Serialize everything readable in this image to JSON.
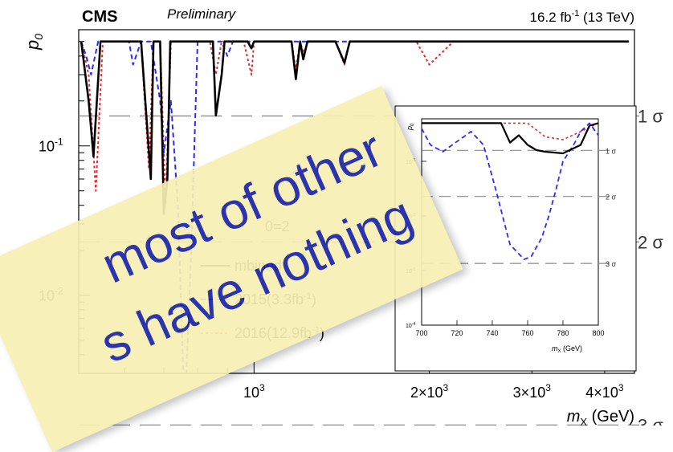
{
  "chart_data": {
    "type": "line",
    "experiment": "CMS",
    "status": "Preliminary",
    "lumi_label_main": "16.2 fb",
    "lumi_sup": "-1",
    "lumi_label_energy": "(13 TeV)",
    "ylabel": "p",
    "ylabel_sub": "0",
    "xlabel": "m",
    "xlabel_sub": "X",
    "xlabel_unit": "(GeV)",
    "x_log": true,
    "y_log": true,
    "xlim": [
      500,
      4500
    ],
    "ylim": [
      0.003,
      0.6
    ],
    "x_ticks": [
      {
        "value": 1000,
        "base": "10",
        "exp": "3"
      },
      {
        "value": 2000,
        "base": "2×10",
        "exp": "3"
      },
      {
        "value": 3000,
        "base": "3×10",
        "exp": "3"
      },
      {
        "value": 4000,
        "base": "4×10",
        "exp": "3"
      }
    ],
    "y_ticks": [
      {
        "value": 0.1,
        "base": "10",
        "exp": "-1"
      },
      {
        "value": 0.01,
        "base": "10",
        "exp": "-2"
      }
    ],
    "sigma_lines": [
      {
        "value": 0.1587,
        "label": "1 σ"
      },
      {
        "value": 0.02275,
        "label": "2 σ"
      },
      {
        "value": 0.00135,
        "label": "3 σ"
      }
    ],
    "legend": {
      "header_partial": "0=2",
      "entries": [
        {
          "name": "mbined",
          "color": "#000000",
          "dash": "solid"
        },
        {
          "name": "2015(3.3fb",
          "sup": "-1",
          "tail": ")",
          "color": "#2b2bff",
          "dash": "6,4"
        },
        {
          "name": "2016(12.9fb",
          "sup": "-1",
          "tail": ")",
          "color": "#e8262a",
          "dash": "3,3"
        }
      ]
    },
    "series": [
      {
        "name": "Combined",
        "color": "#000000",
        "width": 2.6,
        "dash": "none",
        "x": [
          505,
          520,
          530,
          545,
          560,
          575,
          600,
          610,
          640,
          665,
          672,
          690,
          700,
          710,
          718,
          740,
          760,
          780,
          800,
          850,
          860,
          880,
          890,
          910,
          925,
          940,
          975,
          990,
          1000,
          1010,
          1030,
          1100,
          1160,
          1180,
          1200,
          1215,
          1235,
          1250,
          1300,
          1380,
          1430,
          1460,
          1480,
          1500,
          1520,
          1560,
          1600,
          1700,
          1900,
          2200,
          2500,
          3000,
          3500,
          4000,
          4400
        ],
        "y": [
          0.5,
          0.2,
          0.085,
          0.5,
          0.5,
          0.5,
          0.5,
          0.5,
          0.5,
          0.06,
          0.5,
          0.5,
          0.035,
          0.06,
          0.5,
          0.5,
          0.5,
          0.5,
          0.5,
          0.5,
          0.16,
          0.3,
          0.5,
          0.5,
          0.5,
          0.5,
          0.5,
          0.45,
          0.5,
          0.5,
          0.5,
          0.5,
          0.5,
          0.28,
          0.5,
          0.38,
          0.5,
          0.5,
          0.5,
          0.5,
          0.36,
          0.5,
          0.5,
          0.5,
          0.5,
          0.5,
          0.5,
          0.5,
          0.5,
          0.5,
          0.5,
          0.5,
          0.5,
          0.5,
          0.5
        ]
      },
      {
        "name": "2015(3.3fb-1)",
        "color": "#2b2bff",
        "width": 2,
        "dash": "6,4",
        "x": [
          505,
          515,
          525,
          540,
          560,
          580,
          610,
          620,
          640,
          665,
          690,
          700,
          720,
          740,
          760,
          780,
          800,
          840,
          880,
          900,
          920,
          940,
          980,
          1020,
          1060,
          1100,
          1160,
          1190,
          1230,
          1260,
          1300,
          1380,
          1420,
          1460,
          1500,
          1540,
          1600,
          1700,
          1900,
          2200,
          2500,
          3000,
          3500,
          4000,
          4400
        ],
        "y": [
          0.5,
          0.4,
          0.3,
          0.5,
          0.5,
          0.5,
          0.5,
          0.35,
          0.5,
          0.5,
          0.2,
          0.09,
          0.2,
          0.04,
          0.0016,
          0.02,
          0.5,
          0.5,
          0.5,
          0.4,
          0.5,
          0.5,
          0.5,
          0.5,
          0.5,
          0.5,
          0.5,
          0.5,
          0.5,
          0.5,
          0.5,
          0.5,
          0.5,
          0.5,
          0.5,
          0.5,
          0.5,
          0.5,
          0.5,
          0.5,
          0.5,
          0.5,
          0.5,
          0.5,
          0.5
        ]
      },
      {
        "name": "2016(12.9fb-1)",
        "color": "#e8262a",
        "width": 2,
        "dash": "3,3",
        "x": [
          505,
          520,
          535,
          550,
          580,
          610,
          620,
          640,
          660,
          672,
          690,
          705,
          720,
          740,
          770,
          800,
          840,
          860,
          880,
          900,
          960,
          990,
          1000,
          1020,
          1100,
          1160,
          1180,
          1200,
          1215,
          1240,
          1300,
          1380,
          1430,
          1460,
          1500,
          1540,
          1600,
          1700,
          1900,
          2000,
          2200,
          2500,
          3000,
          3500,
          4000,
          4400
        ],
        "y": [
          0.5,
          0.3,
          0.05,
          0.5,
          0.5,
          0.5,
          0.5,
          0.5,
          0.07,
          0.5,
          0.5,
          0.04,
          0.5,
          0.5,
          0.5,
          0.5,
          0.5,
          0.3,
          0.5,
          0.5,
          0.5,
          0.3,
          0.5,
          0.5,
          0.5,
          0.5,
          0.32,
          0.5,
          0.42,
          0.5,
          0.5,
          0.5,
          0.35,
          0.5,
          0.5,
          0.5,
          0.5,
          0.5,
          0.5,
          0.35,
          0.5,
          0.5,
          0.5,
          0.5,
          0.5,
          0.5
        ]
      }
    ],
    "inset": {
      "xlabel": "m",
      "xlabel_sub": "X",
      "xlabel_unit": "(GeV)",
      "ylabel": "p",
      "ylabel_sub": "0",
      "xlim": [
        700,
        800
      ],
      "ylim": [
        0.0001,
        0.6
      ],
      "x_ticks": [
        700,
        720,
        740,
        760,
        780,
        800
      ],
      "y_ticks": [
        {
          "value": 0.1,
          "base": "10",
          "exp": "-1"
        },
        {
          "value": 0.01,
          "base": "10",
          "exp": "-2"
        },
        {
          "value": 0.001,
          "base": "10",
          "exp": "-3"
        },
        {
          "value": 0.0001,
          "base": "10",
          "exp": "-4"
        }
      ],
      "sigma_labels": [
        "1 σ",
        "2 σ",
        "3 σ"
      ],
      "series": [
        {
          "name": "Combined",
          "x": [
            700,
            745,
            750,
            755,
            760,
            765,
            770,
            780,
            790,
            795,
            800
          ],
          "y": [
            0.5,
            0.5,
            0.22,
            0.3,
            0.2,
            0.16,
            0.15,
            0.14,
            0.2,
            0.45,
            0.5
          ]
        },
        {
          "name": "2015(3.3fb-1)",
          "x": [
            700,
            705,
            712,
            720,
            728,
            735,
            742,
            750,
            758,
            762,
            768,
            772,
            776,
            780,
            786,
            790,
            795,
            800
          ],
          "y": [
            0.4,
            0.2,
            0.15,
            0.23,
            0.35,
            0.2,
            0.03,
            0.003,
            0.0016,
            0.0018,
            0.004,
            0.01,
            0.03,
            0.1,
            0.2,
            0.35,
            0.5,
            0.3
          ]
        },
        {
          "name": "2016(12.9fb-1)",
          "x": [
            700,
            750,
            760,
            770,
            780,
            790,
            800
          ],
          "y": [
            0.5,
            0.5,
            0.5,
            0.28,
            0.25,
            0.35,
            0.5
          ]
        }
      ]
    }
  },
  "overlay_note": {
    "line1": "most of other",
    "line2": "s have nothing"
  }
}
